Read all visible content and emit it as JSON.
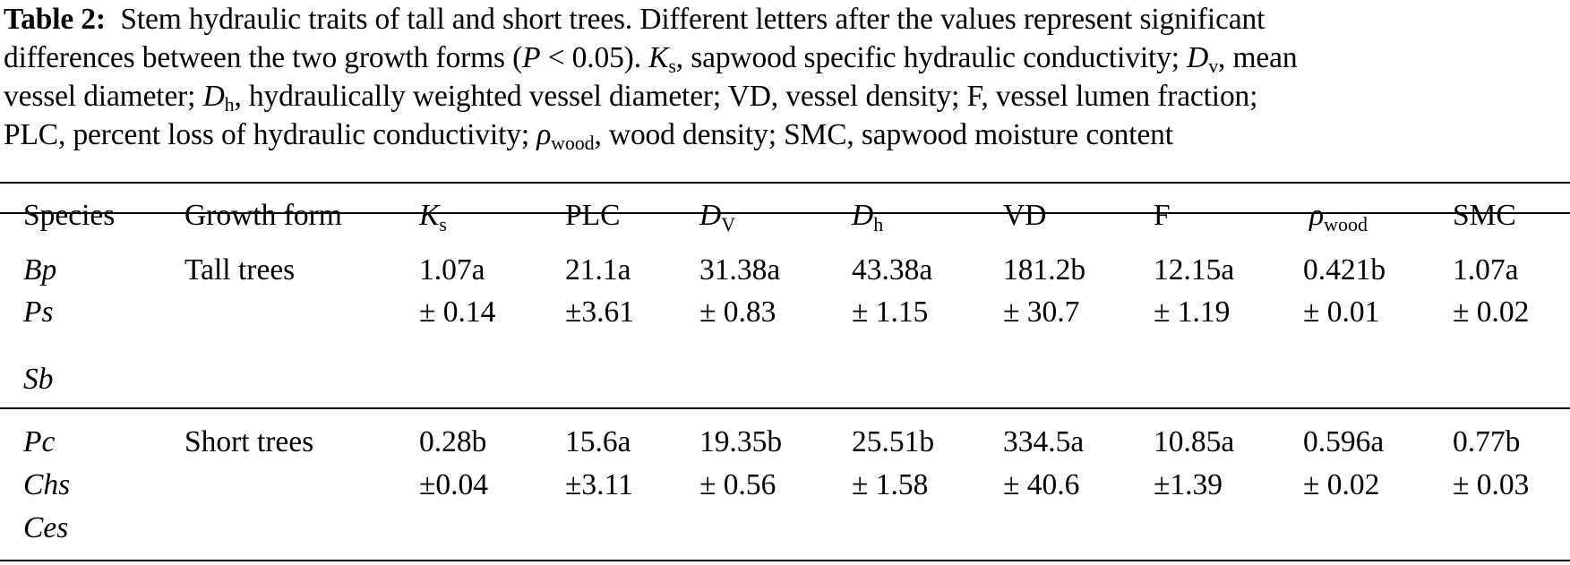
{
  "caption": {
    "label": "Table 2:",
    "line1_rest": "Stem hydraulic traits of tall and short trees. Different letters after the values represent significant",
    "line2_a": "differences between the two growth forms (",
    "line2_p": "P",
    "line2_b": " < 0.05). ",
    "line2_ks_sym": "K",
    "line2_ks_sub": "s",
    "line2_c": ", sapwood specific hydraulic conductivity; ",
    "line2_dv_sym": "D",
    "line2_dv_sub": "v",
    "line2_d": ", mean",
    "line3_a": "vessel diameter; ",
    "line3_dh_sym": "D",
    "line3_dh_sub": "h",
    "line3_b": ", hydraulically weighted vessel diameter; VD, vessel density; F, vessel lumen fraction;",
    "line4_a": "PLC, percent loss of hydraulic conductivity; ",
    "line4_rho_sym": "ρ",
    "line4_rho_sub": "wood",
    "line4_b": ", wood density; SMC, sapwood moisture content"
  },
  "header": {
    "species": "Species",
    "growth_form": "Growth form",
    "ks_sym": "K",
    "ks_sub": "s",
    "plc": "PLC",
    "dv_sym": "D",
    "dv_sub": "V",
    "dh_sym": "D",
    "dh_sub": "h",
    "vd": "VD",
    "f": "F",
    "rho_sym": "ρ",
    "rho_sub": "wood",
    "smc": "SMC"
  },
  "rows": [
    {
      "species": [
        "Bp",
        "Ps",
        "Sb"
      ],
      "growth_form": "Tall trees",
      "means": [
        "1.07a",
        "21.1a",
        "31.38a",
        "43.38a",
        "181.2b",
        "12.15a",
        "0.421b",
        "1.07a"
      ],
      "sds": [
        "± 0.14",
        "±3.61",
        "± 0.83",
        "± 1.15",
        "± 30.7",
        "± 1.19",
        "± 0.01",
        "± 0.02"
      ]
    },
    {
      "species": [
        "Pc",
        "Chs",
        "Ces"
      ],
      "growth_form": "Short trees",
      "means": [
        "0.28b",
        "15.6a",
        "19.35b",
        "25.51b",
        "334.5a",
        "10.85a",
        "0.596a",
        "0.77b"
      ],
      "sds": [
        "±0.04",
        "±3.11",
        "± 0.56",
        "± 1.58",
        "± 40.6",
        "±1.39",
        "± 0.02",
        "± 0.03"
      ]
    }
  ]
}
